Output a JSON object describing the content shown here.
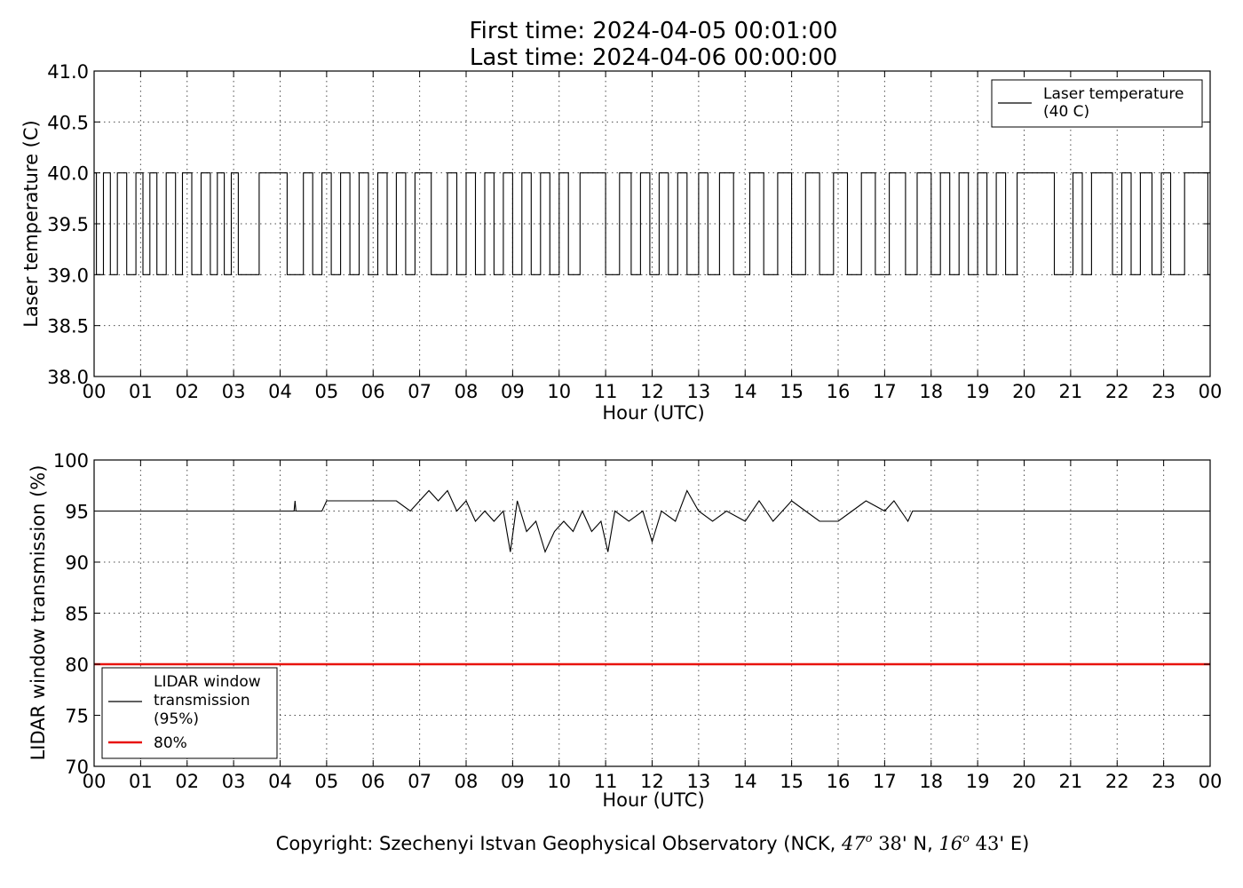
{
  "header": {
    "first_time": "First time: 2024-04-05 00:01:00",
    "last_time": "Last time: 2024-04-06 00:00:00"
  },
  "footer": {
    "copyright_text": "Copyright: Szechenyi Istvan Geophysical Observatory (NCK, ",
    "lat_deg": "47",
    "lat_deg_sup": "o",
    "lat_min": " 38",
    "lat_suffix": "' N, ",
    "lon_deg": "16",
    "lon_deg_sup": "o",
    "lon_min": " 43",
    "lon_suffix": "' E)"
  },
  "chart_data": [
    {
      "type": "line",
      "xlabel": "Hour (UTC)",
      "ylabel": "Laser temperature (C)",
      "xlim": [
        0,
        24
      ],
      "ylim": [
        38.0,
        41.0
      ],
      "x_tick_labels": [
        "00",
        "01",
        "02",
        "03",
        "04",
        "05",
        "06",
        "07",
        "08",
        "09",
        "10",
        "11",
        "12",
        "13",
        "14",
        "15",
        "16",
        "17",
        "18",
        "19",
        "20",
        "21",
        "22",
        "23",
        "00"
      ],
      "y_tick_labels": [
        "38.0",
        "38.5",
        "39.0",
        "39.5",
        "40.0",
        "40.5",
        "41.0"
      ],
      "grid": true,
      "legend_position": "top-right",
      "series": [
        {
          "name": "Laser temperature\n(40 C)",
          "color": "#000000",
          "baseline": 39.0,
          "high": 40.0,
          "description_values": "Signal toggles between 39.0 and 40.0 C throughout the day; dense switching 00-03, 04.4-07, 07.6-10.5, 11.5-12.8, 18.2-20, 21.5-23",
          "toggle_hours_sample": [
            0.05,
            0.2,
            0.35,
            0.5,
            0.7,
            0.9,
            1.05,
            1.2,
            1.35,
            1.55,
            1.75,
            1.9,
            2.1,
            2.3,
            2.5,
            2.65,
            2.8,
            2.95,
            3.1,
            3.55,
            4.15,
            4.5,
            4.7,
            4.9,
            5.1,
            5.3,
            5.5,
            5.7,
            5.9,
            6.1,
            6.3,
            6.5,
            6.7,
            6.9,
            7.25,
            7.6,
            7.8,
            8.0,
            8.2,
            8.4,
            8.6,
            8.8,
            9.0,
            9.2,
            9.4,
            9.6,
            9.8,
            10.0,
            10.2,
            10.45,
            11.0,
            11.3,
            11.55,
            11.75,
            11.95,
            12.15,
            12.35,
            12.55,
            12.75,
            13.0,
            13.2,
            13.45,
            13.75,
            14.1,
            14.4,
            14.7,
            15.0,
            15.3,
            15.6,
            15.9,
            16.2,
            16.5,
            16.8,
            17.1,
            17.45,
            17.7,
            18.0,
            18.2,
            18.4,
            18.6,
            18.8,
            19.0,
            19.2,
            19.4,
            19.6,
            19.85,
            20.65,
            21.05,
            21.25,
            21.45,
            21.9,
            22.1,
            22.3,
            22.5,
            22.75,
            22.95,
            23.15,
            23.45,
            23.95
          ]
        }
      ]
    },
    {
      "type": "line",
      "xlabel": "Hour (UTC)",
      "ylabel": "LIDAR window transmission (%)",
      "xlim": [
        0,
        24
      ],
      "ylim": [
        70,
        100
      ],
      "x_tick_labels": [
        "00",
        "01",
        "02",
        "03",
        "04",
        "05",
        "06",
        "07",
        "08",
        "09",
        "10",
        "11",
        "12",
        "13",
        "14",
        "15",
        "16",
        "17",
        "18",
        "19",
        "20",
        "21",
        "22",
        "23",
        "00"
      ],
      "y_tick_labels": [
        "70",
        "75",
        "80",
        "85",
        "90",
        "95",
        "100"
      ],
      "grid": true,
      "legend_position": "bottom-left",
      "series": [
        {
          "name": "LIDAR window\ntransmission\n(95%)",
          "color": "#000000",
          "baseline": 95,
          "x": [
            0,
            4.3,
            4.32,
            4.34,
            4.9,
            5.0,
            5.5,
            6.0,
            6.5,
            6.8,
            7.0,
            7.2,
            7.4,
            7.6,
            7.8,
            8.0,
            8.2,
            8.4,
            8.6,
            8.8,
            8.95,
            9.1,
            9.3,
            9.5,
            9.7,
            9.9,
            10.1,
            10.3,
            10.5,
            10.7,
            10.9,
            11.05,
            11.2,
            11.5,
            11.8,
            12.0,
            12.2,
            12.5,
            12.75,
            13.0,
            13.3,
            13.6,
            14.0,
            14.3,
            14.6,
            15.0,
            15.3,
            15.6,
            16.0,
            16.3,
            16.6,
            17.0,
            17.2,
            17.5,
            17.6,
            24
          ],
          "y": [
            95,
            95,
            96,
            95,
            95,
            96,
            96,
            96,
            96,
            95,
            96,
            97,
            96,
            97,
            95,
            96,
            94,
            95,
            94,
            95,
            91,
            96,
            93,
            94,
            91,
            93,
            94,
            93,
            95,
            93,
            94,
            91,
            95,
            94,
            95,
            92,
            95,
            94,
            97,
            95,
            94,
            95,
            94,
            96,
            94,
            96,
            95,
            94,
            94,
            95,
            96,
            95,
            96,
            94,
            95,
            95
          ]
        },
        {
          "name": "80%",
          "color": "#e8130e",
          "constant": 80
        }
      ]
    }
  ]
}
